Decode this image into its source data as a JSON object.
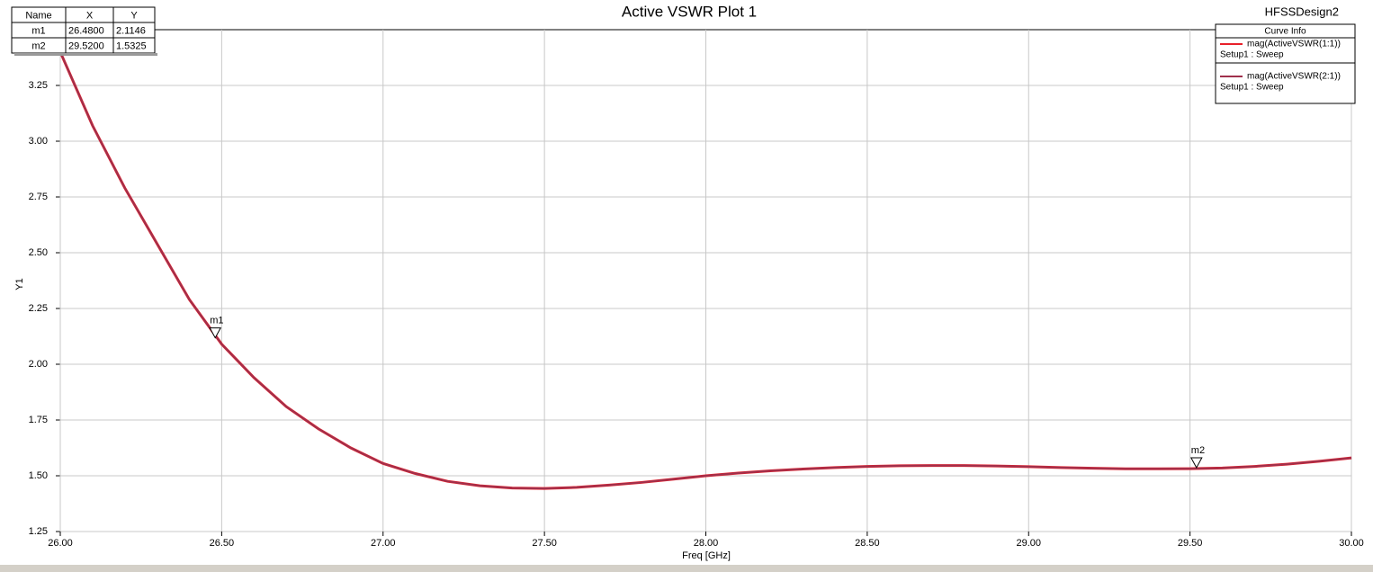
{
  "chart_data": {
    "type": "line",
    "title": "Active VSWR Plot 1",
    "design_name": "HFSSDesign2",
    "x_label": "Freq [GHz]",
    "y_label": "Y1",
    "x": [
      26.0,
      26.1,
      26.2,
      26.3,
      26.4,
      26.5,
      26.6,
      26.7,
      26.8,
      26.9,
      27.0,
      27.1,
      27.2,
      27.3,
      27.4,
      27.5,
      27.6,
      27.7,
      27.8,
      27.9,
      28.0,
      28.1,
      28.2,
      28.3,
      28.4,
      28.5,
      28.6,
      28.7,
      28.8,
      28.9,
      29.0,
      29.1,
      29.2,
      29.3,
      29.4,
      29.5,
      29.6,
      29.7,
      29.8,
      29.9,
      30.0
    ],
    "series": [
      {
        "name": "mag(ActiveVSWR(1:1))",
        "setup": "Setup1 : Sweep",
        "color": "#e8202a",
        "values": [
          3.4,
          3.07,
          2.79,
          2.54,
          2.29,
          2.09,
          1.94,
          1.81,
          1.71,
          1.625,
          1.555,
          1.51,
          1.475,
          1.455,
          1.445,
          1.443,
          1.448,
          1.458,
          1.47,
          1.485,
          1.5,
          1.512,
          1.522,
          1.53,
          1.537,
          1.542,
          1.545,
          1.546,
          1.546,
          1.544,
          1.541,
          1.537,
          1.534,
          1.531,
          1.531,
          1.532,
          1.535,
          1.542,
          1.552,
          1.565,
          1.58
        ]
      },
      {
        "name": "mag(ActiveVSWR(2:1))",
        "setup": "Setup1 : Sweep",
        "color": "#a0304c",
        "values": [
          3.4,
          3.07,
          2.79,
          2.54,
          2.29,
          2.09,
          1.94,
          1.81,
          1.71,
          1.625,
          1.555,
          1.51,
          1.475,
          1.455,
          1.445,
          1.443,
          1.448,
          1.458,
          1.47,
          1.485,
          1.5,
          1.512,
          1.522,
          1.53,
          1.537,
          1.542,
          1.545,
          1.546,
          1.546,
          1.544,
          1.541,
          1.537,
          1.534,
          1.531,
          1.531,
          1.532,
          1.535,
          1.542,
          1.552,
          1.565,
          1.58
        ]
      }
    ],
    "legend_title": "Curve Info",
    "xlim": [
      26.0,
      30.0
    ],
    "ylim": [
      1.25,
      3.5
    ],
    "xticks": [
      {
        "value": 26.0,
        "label": "26.00"
      },
      {
        "value": 26.5,
        "label": "26.50"
      },
      {
        "value": 27.0,
        "label": "27.00"
      },
      {
        "value": 27.5,
        "label": "27.50"
      },
      {
        "value": 28.0,
        "label": "28.00"
      },
      {
        "value": 28.5,
        "label": "28.50"
      },
      {
        "value": 29.0,
        "label": "29.00"
      },
      {
        "value": 29.5,
        "label": "29.50"
      },
      {
        "value": 30.0,
        "label": "30.00"
      }
    ],
    "yticks": [
      {
        "value": 1.25,
        "label": "1.25"
      },
      {
        "value": 1.5,
        "label": "1.50"
      },
      {
        "value": 1.75,
        "label": "1.75"
      },
      {
        "value": 2.0,
        "label": "2.00"
      },
      {
        "value": 2.25,
        "label": "2.25"
      },
      {
        "value": 2.5,
        "label": "2.50"
      },
      {
        "value": 2.75,
        "label": "2.75"
      },
      {
        "value": 3.0,
        "label": "3.00"
      },
      {
        "value": 3.25,
        "label": "3.25"
      }
    ],
    "grid": true,
    "marker_table_headers": [
      "Name",
      "X",
      "Y"
    ],
    "markers": [
      {
        "name": "m1",
        "x": {
          "value": 26.48,
          "label": "26.4800"
        },
        "y": {
          "value": 2.1146,
          "label": "2.1146"
        }
      },
      {
        "name": "m2",
        "x": {
          "value": 29.52,
          "label": "29.5200"
        },
        "y": {
          "value": 1.5325,
          "label": "1.5325"
        }
      }
    ]
  }
}
